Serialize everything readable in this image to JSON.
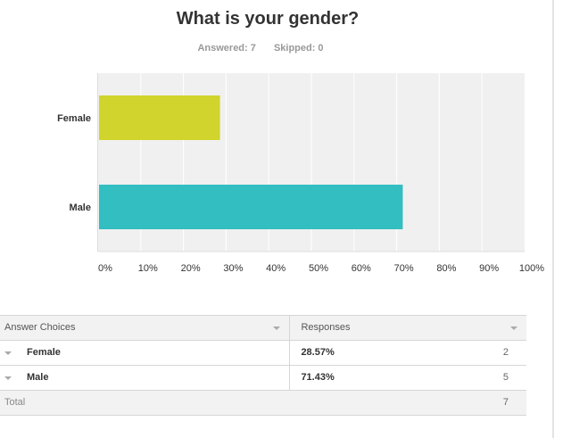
{
  "question": {
    "title": "What is your gender?",
    "answered_label": "Answered:",
    "answered_value": "7",
    "skipped_label": "Skipped:",
    "skipped_value": "0"
  },
  "chart_data": {
    "type": "bar",
    "orientation": "horizontal",
    "title": "",
    "xlabel": "",
    "ylabel": "",
    "categories": [
      "Female",
      "Male"
    ],
    "values": [
      28.57,
      71.43
    ],
    "xlim": [
      0,
      100
    ],
    "ticks": [
      "0%",
      "10%",
      "20%",
      "30%",
      "40%",
      "50%",
      "60%",
      "70%",
      "80%",
      "90%",
      "100%"
    ],
    "grid": true,
    "colors": [
      "#d0d42c",
      "#33bec1"
    ]
  },
  "table": {
    "header_choices": "Answer Choices",
    "header_responses": "Responses",
    "rows": [
      {
        "label": "Female",
        "percent": "28.57%",
        "count": "2"
      },
      {
        "label": "Male",
        "percent": "71.43%",
        "count": "5"
      }
    ],
    "total_label": "Total",
    "total_value": "7"
  },
  "colors": {
    "plot_background": "#f0f0f0",
    "gridline": "#ffffff",
    "title_text": "#333333",
    "meta_text": "#999999"
  }
}
